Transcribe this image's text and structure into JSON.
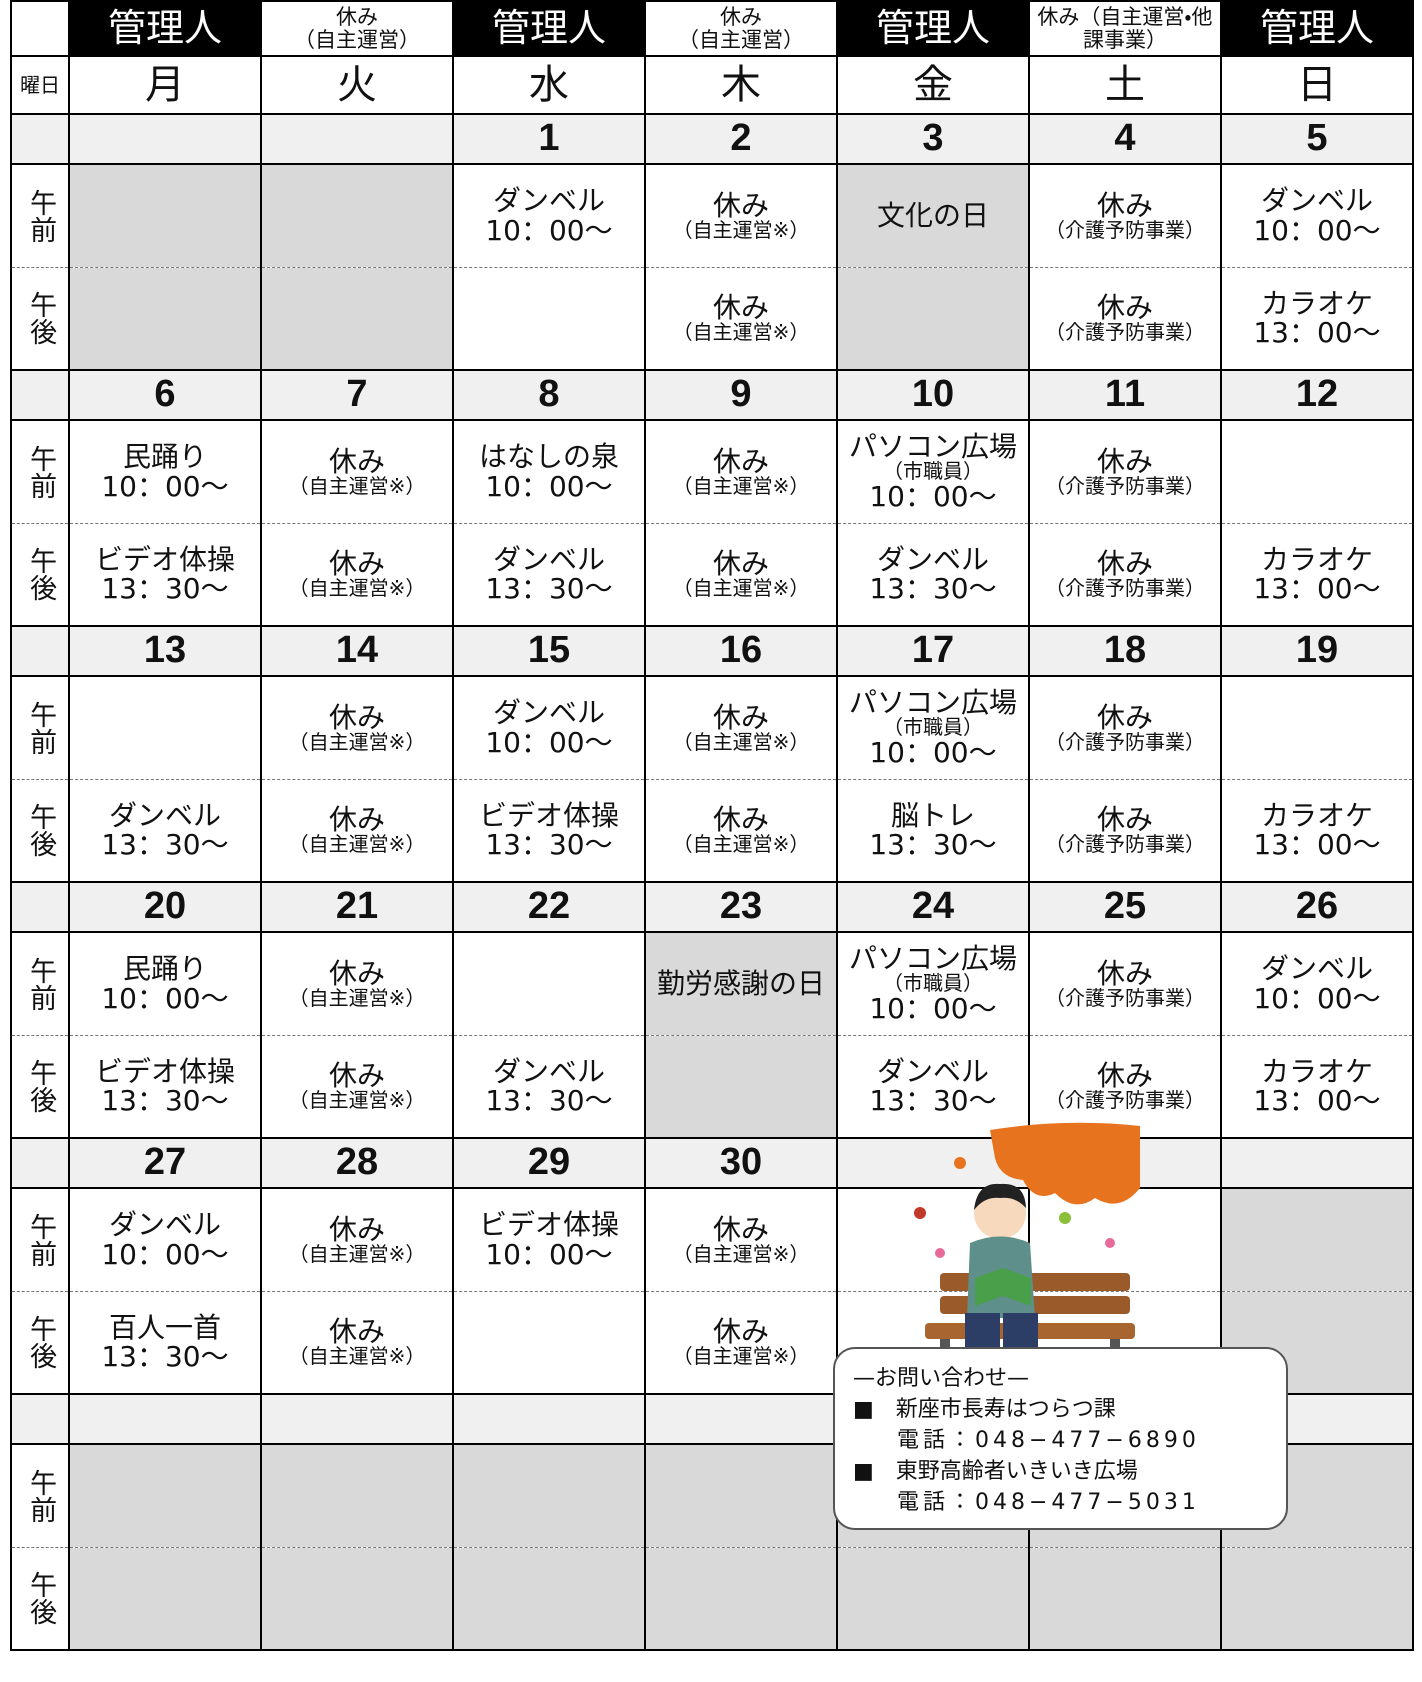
{
  "header": {
    "staff": [
      {
        "text": "管理人",
        "dark": true
      },
      {
        "text": "休み",
        "note": "（自主運営）",
        "dark": false
      },
      {
        "text": "管理人",
        "dark": true
      },
      {
        "text": "休み",
        "note": "（自主運営）",
        "dark": false
      },
      {
        "text": "管理人",
        "dark": true
      },
      {
        "text": "休み（自主運営・他課事業）",
        "dark": false
      },
      {
        "text": "管理人",
        "dark": true
      }
    ]
  },
  "day_label": "曜日",
  "days": [
    "月",
    "火",
    "水",
    "木",
    "金",
    "土",
    "日"
  ],
  "row_labels": {
    "am": "午前",
    "pm": "午後"
  },
  "weeks": [
    {
      "dates": [
        null,
        null,
        1,
        2,
        3,
        4,
        5
      ],
      "am": [
        {
          "shaded": true
        },
        {
          "shaded": true
        },
        {
          "title": "ダンベル",
          "time": "10：00～"
        },
        {
          "title": "休み",
          "note": "（自主運営※）"
        },
        {
          "title": "文化の日",
          "shaded": true
        },
        {
          "title": "休み",
          "note": "（介護予防事業）"
        },
        {
          "title": "ダンベル",
          "time": "10：00～"
        }
      ],
      "pm": [
        {
          "shaded": true
        },
        {
          "shaded": true
        },
        null,
        {
          "title": "休み",
          "note": "（自主運営※）"
        },
        {
          "shaded": true
        },
        {
          "title": "休み",
          "note": "（介護予防事業）"
        },
        {
          "title": "カラオケ",
          "time": "13：00～"
        }
      ]
    },
    {
      "dates": [
        6,
        7,
        8,
        9,
        10,
        11,
        12
      ],
      "am": [
        {
          "title": "民踊り",
          "time": "10：00～"
        },
        {
          "title": "休み",
          "note": "（自主運営※）"
        },
        {
          "title": "はなしの泉",
          "time": "10：00～"
        },
        {
          "title": "休み",
          "note": "（自主運営※）"
        },
        {
          "title": "パソコン広場",
          "note": "（市職員）",
          "time": "10：00～"
        },
        {
          "title": "休み",
          "note": "（介護予防事業）"
        },
        null
      ],
      "pm": [
        {
          "title": "ビデオ体操",
          "time": "13：30～"
        },
        {
          "title": "休み",
          "note": "（自主運営※）"
        },
        {
          "title": "ダンベル",
          "time": "13：30～"
        },
        {
          "title": "休み",
          "note": "（自主運営※）"
        },
        {
          "title": "ダンベル",
          "time": "13：30～"
        },
        {
          "title": "休み",
          "note": "（介護予防事業）"
        },
        {
          "title": "カラオケ",
          "time": "13：00～"
        }
      ]
    },
    {
      "dates": [
        13,
        14,
        15,
        16,
        17,
        18,
        19
      ],
      "am": [
        null,
        {
          "title": "休み",
          "note": "（自主運営※）"
        },
        {
          "title": "ダンベル",
          "time": "10：00～"
        },
        {
          "title": "休み",
          "note": "（自主運営※）"
        },
        {
          "title": "パソコン広場",
          "note": "（市職員）",
          "time": "10：00～"
        },
        {
          "title": "休み",
          "note": "（介護予防事業）"
        },
        null
      ],
      "pm": [
        {
          "title": "ダンベル",
          "time": "13：30～"
        },
        {
          "title": "休み",
          "note": "（自主運営※）"
        },
        {
          "title": "ビデオ体操",
          "time": "13：30～"
        },
        {
          "title": "休み",
          "note": "（自主運営※）"
        },
        {
          "title": "脳トレ",
          "time": "13：30～"
        },
        {
          "title": "休み",
          "note": "（介護予防事業）"
        },
        {
          "title": "カラオケ",
          "time": "13：00～"
        }
      ]
    },
    {
      "dates": [
        20,
        21,
        22,
        23,
        24,
        25,
        26
      ],
      "am": [
        {
          "title": "民踊り",
          "time": "10：00～"
        },
        {
          "title": "休み",
          "note": "（自主運営※）"
        },
        null,
        {
          "title": "勤労感謝の日",
          "shaded": true
        },
        {
          "title": "パソコン広場",
          "note": "（市職員）",
          "time": "10：00～"
        },
        {
          "title": "休み",
          "note": "（介護予防事業）"
        },
        {
          "title": "ダンベル",
          "time": "10：00～"
        }
      ],
      "pm": [
        {
          "title": "ビデオ体操",
          "time": "13：30～"
        },
        {
          "title": "休み",
          "note": "（自主運営※）"
        },
        {
          "title": "ダンベル",
          "time": "13：30～"
        },
        {
          "shaded": true
        },
        {
          "title": "ダンベル",
          "time": "13：30～"
        },
        {
          "title": "休み",
          "note": "（介護予防事業）"
        },
        {
          "title": "カラオケ",
          "time": "13：00～"
        }
      ]
    },
    {
      "dates": [
        27,
        28,
        29,
        30,
        null,
        null,
        null
      ],
      "am": [
        {
          "title": "ダンベル",
          "time": "10：00～"
        },
        {
          "title": "休み",
          "note": "（自主運営※）"
        },
        {
          "title": "ビデオ体操",
          "time": "10：00～"
        },
        {
          "title": "休み",
          "note": "（自主運営※）"
        },
        null,
        null,
        {
          "shaded": true
        }
      ],
      "pm": [
        {
          "title": "百人一首",
          "time": "13：30～"
        },
        {
          "title": "休み",
          "note": "（自主運営※）"
        },
        null,
        {
          "title": "休み",
          "note": "（自主運営※）"
        },
        null,
        null,
        {
          "shaded": true
        }
      ]
    },
    {
      "dates": [
        null,
        null,
        null,
        null,
        null,
        null,
        null
      ],
      "am": [
        {
          "shaded": true
        },
        {
          "shaded": true
        },
        {
          "shaded": true
        },
        {
          "shaded": true
        },
        {
          "shaded": true
        },
        {
          "shaded": true
        },
        {
          "shaded": true
        }
      ],
      "pm": [
        {
          "shaded": true
        },
        {
          "shaded": true
        },
        {
          "shaded": true
        },
        {
          "shaded": true
        },
        {
          "shaded": true
        },
        {
          "shaded": true
        },
        {
          "shaded": true
        }
      ]
    }
  ],
  "contact": {
    "title": "—お問い合わせ—",
    "items": [
      {
        "name": "■　新座市長寿はつらつ課",
        "phone": "電話：048−477−6890"
      },
      {
        "name": "■　東野高齢者いきいき広場",
        "phone": "電話：048−477−5031"
      }
    ]
  }
}
